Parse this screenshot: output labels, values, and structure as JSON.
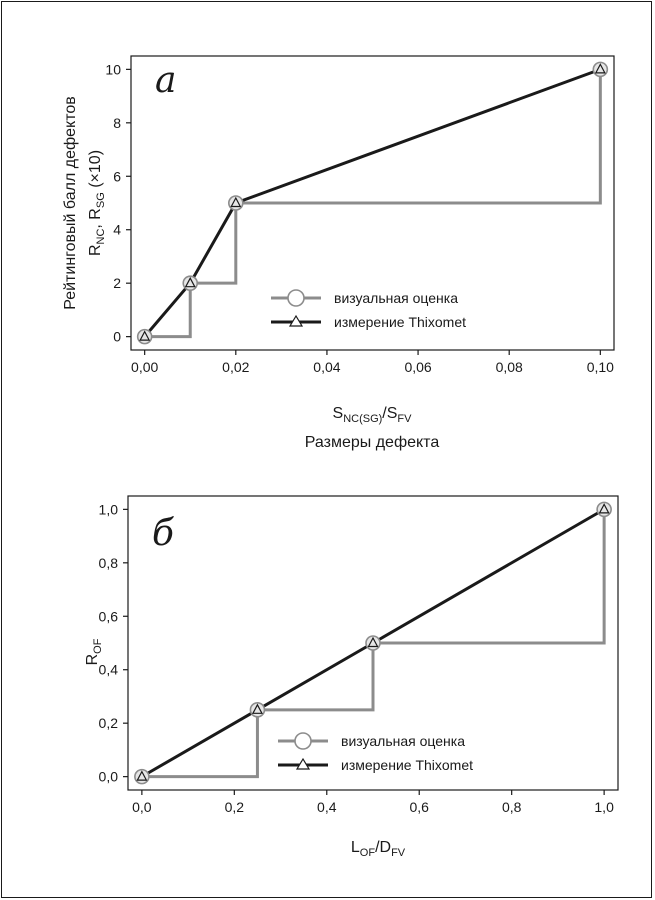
{
  "chart_data": [
    {
      "type": "line",
      "panel_label": "а",
      "ylabel_line1": "Рейтинговый балл дефектов",
      "ylabel_line2": {
        "p1": "R",
        "s1": "NC",
        "p2": ", R",
        "s2": "SG",
        "p3": " (×10)"
      },
      "xlabel_line1": {
        "p1": "S",
        "s1": "NC(SG)",
        "p2": "/S",
        "s2": "FV"
      },
      "xlabel_line2": "Размеры дефекта",
      "x_ticks": [
        "0,00",
        "0,02",
        "0,04",
        "0,06",
        "0,08",
        "0,10"
      ],
      "y_ticks": [
        "0",
        "2",
        "4",
        "6",
        "8",
        "10"
      ],
      "xlim": [
        -0.003,
        0.103
      ],
      "ylim": [
        -0.5,
        10.5
      ],
      "legend_position": "bottom-center",
      "series": [
        {
          "name": "визуальная оценка",
          "style": "step",
          "color": "#8c8c8c",
          "marker": "circle",
          "x": [
            0,
            0.01,
            0.02,
            0.1
          ],
          "y": [
            0,
            2,
            5,
            10
          ]
        },
        {
          "name": "измерение Thixomet",
          "style": "line",
          "color": "#1a1a1a",
          "marker": "triangle",
          "x": [
            0,
            0.01,
            0.02,
            0.1
          ],
          "y": [
            0,
            2,
            5,
            10
          ]
        }
      ]
    },
    {
      "type": "line",
      "panel_label": "б",
      "ylabel": {
        "p1": "R",
        "s1": "OF"
      },
      "xlabel": {
        "p1": "L",
        "s1": "OF",
        "p2": "/D",
        "s2": "FV"
      },
      "x_ticks": [
        "0,0",
        "0,2",
        "0,4",
        "0,6",
        "0,8",
        "1,0"
      ],
      "y_ticks": [
        "0,0",
        "0,2",
        "0,4",
        "0,6",
        "0,8",
        "1,0"
      ],
      "xlim": [
        -0.03,
        1.03
      ],
      "ylim": [
        -0.05,
        1.05
      ],
      "legend_position": "bottom-center",
      "series": [
        {
          "name": "визуальная оценка",
          "style": "step",
          "color": "#8c8c8c",
          "marker": "circle",
          "x": [
            0,
            0.25,
            0.5,
            1.0
          ],
          "y": [
            0,
            0.25,
            0.5,
            1.0
          ]
        },
        {
          "name": "измерение Thixomet",
          "style": "line",
          "color": "#1a1a1a",
          "marker": "triangle",
          "x": [
            0,
            0.25,
            0.5,
            1.0
          ],
          "y": [
            0,
            0.25,
            0.5,
            1.0
          ]
        }
      ]
    }
  ]
}
